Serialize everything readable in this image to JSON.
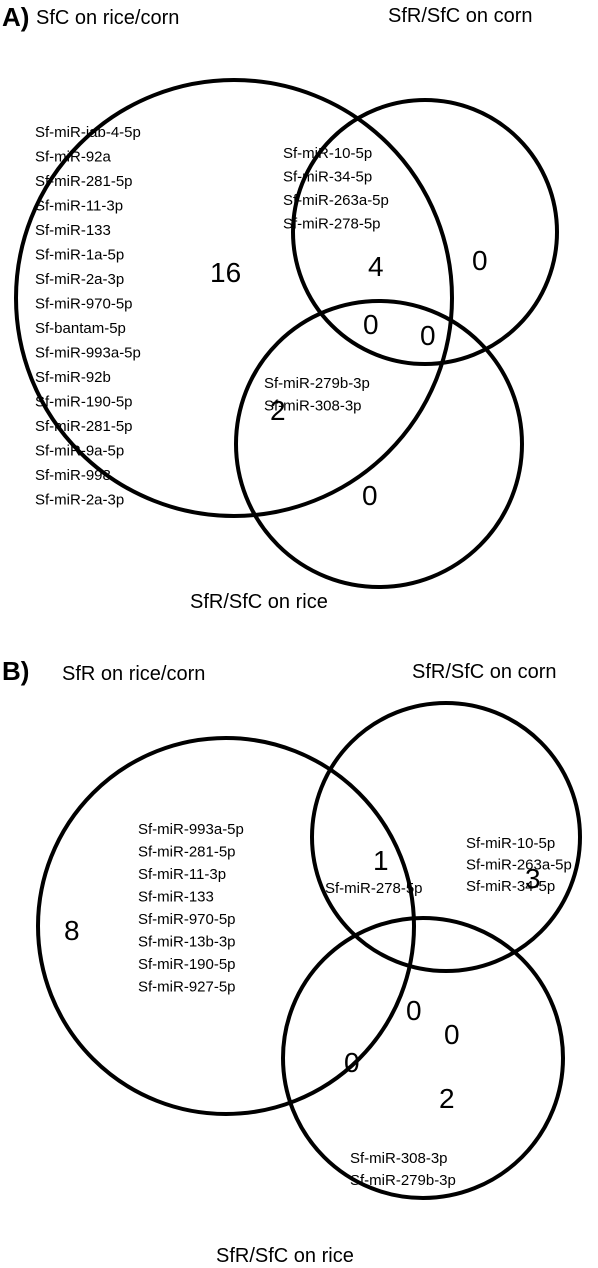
{
  "panel_a": {
    "label": "A)",
    "titles": {
      "set1": "SfC on rice/corn",
      "set2": "SfR/SfC on corn",
      "set3": "SfR/SfC on rice"
    },
    "counts": {
      "only1": "16",
      "only2": "0",
      "only3": "0",
      "s12": "4",
      "s13": "2",
      "s23": "0",
      "s123": "0"
    },
    "only1_mirnas": [
      {
        "name": "Sf-miR-iab-4-5p",
        "color": "#000000"
      },
      {
        "name": "Sf-miR-92a",
        "color": "#000000"
      },
      {
        "name": "Sf-miR-281-5p",
        "color": "#000000"
      },
      {
        "name": "Sf-miR-11-3p",
        "color": "#000000"
      },
      {
        "name": "Sf-miR-133",
        "color": "#000000"
      },
      {
        "name": "Sf-miR-1a-5p",
        "color": "#000000"
      },
      {
        "name": "Sf-miR-2a-3p",
        "color": "#000000"
      },
      {
        "name": "Sf-miR-970-5p",
        "color": "#000000"
      },
      {
        "name": "Sf-bantam-5p",
        "color": "#000000"
      },
      {
        "name": "Sf-miR-993a-5p",
        "color": "#000000"
      },
      {
        "name": "Sf-miR-92b",
        "color": "#000000"
      },
      {
        "name": "Sf-miR-190-5p",
        "color": "#000000"
      },
      {
        "name": "Sf-miR-281-5p",
        "color": "#000000"
      },
      {
        "name": "Sf-miR-9a-5p",
        "color": "#000000"
      },
      {
        "name": "Sf-miR-998",
        "color": "#000000"
      },
      {
        "name": "Sf-miR-2a-3p",
        "color": "#000000"
      }
    ],
    "s12_mirnas": [
      {
        "name": "Sf-miR-10-5p",
        "color": "#1aa34a"
      },
      {
        "name": "Sf-miR-34-5p",
        "color": "#e02020"
      },
      {
        "name": "Sf-miR-263a-5p",
        "color": "#9b3b2f"
      },
      {
        "name": "Sf-miR-278-5p",
        "color": "#1f77c0"
      }
    ],
    "s13_mirnas": [
      {
        "name": "Sf-miR-279b-3p",
        "color": "#e8861c"
      },
      {
        "name": "Sf-miR-308-3p",
        "color": "#6b4f8c"
      }
    ]
  },
  "panel_b": {
    "label": "B)",
    "titles": {
      "set1": "SfR on rice/corn",
      "set2": "SfR/SfC on corn",
      "set3": "SfR/SfC on rice"
    },
    "counts": {
      "only1": "8",
      "only2": "3",
      "only3": "2",
      "s12": "1",
      "s13": "0",
      "s23": "0",
      "s123": "0"
    },
    "only1_mirnas": [
      {
        "name": "Sf-miR-993a-5p",
        "color": "#000000"
      },
      {
        "name": "Sf-miR-281-5p",
        "color": "#000000"
      },
      {
        "name": "Sf-miR-11-3p",
        "color": "#000000"
      },
      {
        "name": "Sf-miR-133",
        "color": "#000000"
      },
      {
        "name": "Sf-miR-970-5p",
        "color": "#000000"
      },
      {
        "name": "Sf-miR-13b-3p",
        "color": "#000000"
      },
      {
        "name": "Sf-miR-190-5p",
        "color": "#000000"
      },
      {
        "name": "Sf-miR-927-5p",
        "color": "#000000"
      }
    ],
    "s12_mirnas": [
      {
        "name": "Sf-miR-278-5p",
        "color": "#1f77c0"
      }
    ],
    "only2_mirnas": [
      {
        "name": "Sf-miR-10-5p",
        "color": "#1aa34a"
      },
      {
        "name": "Sf-miR-263a-5p",
        "color": "#9b3b2f"
      },
      {
        "name": "Sf-miR-34-5p",
        "color": "#e02020"
      }
    ],
    "only3_mirnas": [
      {
        "name": "Sf-miR-308-3p",
        "color": "#6b4f8c"
      },
      {
        "name": "Sf-miR-279b-3p",
        "color": "#e8861c"
      }
    ]
  }
}
